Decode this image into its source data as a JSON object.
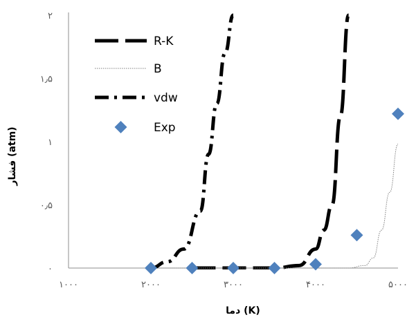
{
  "chart_data": {
    "type": "scatter",
    "xlabel": "دما (K)",
    "ylabel": "فشار (atm)",
    "xlim": [
      1000,
      5000
    ],
    "ylim": [
      0,
      2
    ],
    "x_ticks": [
      1000,
      2000,
      3000,
      4000,
      5000
    ],
    "x_tick_labels": [
      "۱۰۰۰",
      "۲۰۰۰",
      "۳۰۰۰",
      "۴۰۰۰",
      "۵۰۰۰"
    ],
    "y_ticks": [
      0,
      0.5,
      1,
      1.5,
      2
    ],
    "y_tick_labels": [
      "۰",
      "۰٫۵",
      "۱",
      "۱٫۵",
      "۲"
    ],
    "grid": false,
    "legend_position": "top-left",
    "series": [
      {
        "name": "R-K",
        "kind": "line",
        "style": "long-dash",
        "color": "#000000",
        "x": [
          2500,
          3000,
          3500,
          3800,
          4000,
          4100,
          4200,
          4300,
          4400
        ],
        "y": [
          0,
          0,
          0,
          0.02,
          0.15,
          0.3,
          0.5,
          1.2,
          2.0
        ]
      },
      {
        "name": "B",
        "kind": "line",
        "style": "dotted",
        "color": "#7f7f7f",
        "x": [
          2000,
          3000,
          4000,
          4400,
          4600,
          4700,
          4800,
          4900,
          5000
        ],
        "y": [
          0,
          0,
          0,
          0,
          0.02,
          0.08,
          0.3,
          0.6,
          0.98
        ]
      },
      {
        "name": "vdw",
        "kind": "line",
        "style": "dash-dot",
        "color": "#000000",
        "x": [
          2000,
          2200,
          2400,
          2600,
          2700,
          2800,
          2900,
          3000
        ],
        "y": [
          0,
          0.05,
          0.15,
          0.45,
          0.9,
          1.3,
          1.7,
          2.0
        ]
      },
      {
        "name": "Exp",
        "kind": "marker",
        "marker": "diamond",
        "color": "#4f81bd",
        "x": [
          2000,
          2500,
          3000,
          3500,
          4000,
          4500,
          5000
        ],
        "y": [
          0,
          0,
          0,
          0,
          0.03,
          0.26,
          1.22
        ]
      }
    ]
  }
}
